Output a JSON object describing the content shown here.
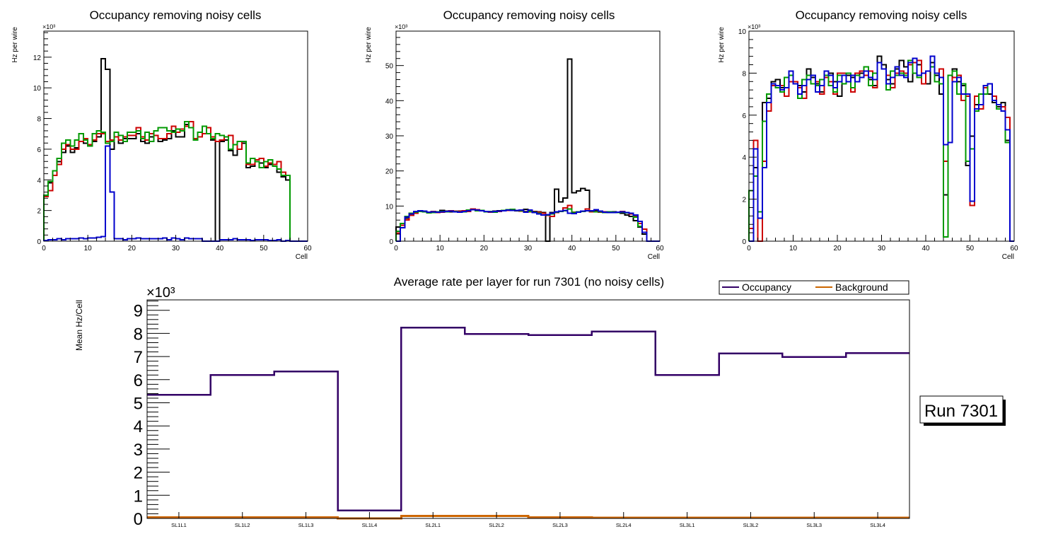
{
  "chart_data": [
    {
      "type": "line",
      "subtype": "step-histogram",
      "title": "Occupancy removing noisy cells",
      "xlabel": "Cell",
      "ylabel": "Hz per wire",
      "y_multiplier_label": "×10³",
      "xlim": [
        0,
        60
      ],
      "ylim": [
        0,
        13.7
      ],
      "y_units": "thousands",
      "x_ticks": [
        0,
        10,
        20,
        30,
        40,
        50,
        60
      ],
      "y_ticks": [
        0,
        2,
        4,
        6,
        8,
        10,
        12
      ],
      "grid": false,
      "series": [
        {
          "name": "black",
          "color": "#000000",
          "values": [
            3.0,
            3.8,
            4.6,
            5.2,
            5.8,
            6.2,
            5.8,
            6.1,
            6.5,
            6.4,
            6.2,
            6.5,
            6.8,
            11.9,
            11.2,
            6.0,
            6.8,
            6.4,
            6.7,
            6.7,
            6.7,
            7.0,
            6.5,
            6.4,
            6.8,
            6.9,
            6.5,
            6.6,
            6.7,
            7.2,
            6.8,
            6.8,
            7.6,
            7.4,
            6.7,
            6.8,
            7.0,
            7.0,
            6.6,
            0.0,
            6.5,
            6.6,
            5.9,
            5.6,
            6.0,
            6.4,
            4.8,
            4.9,
            5.2,
            5.1,
            4.8,
            5.0,
            4.9,
            4.5,
            4.2,
            4.0,
            0,
            0,
            0,
            0
          ]
        },
        {
          "name": "red",
          "color": "#cc0000",
          "values": [
            2.9,
            3.3,
            4.3,
            5.0,
            6.0,
            6.3,
            6.0,
            6.0,
            6.5,
            6.7,
            6.3,
            6.6,
            7.0,
            7.0,
            6.5,
            6.6,
            6.8,
            6.6,
            6.8,
            6.9,
            6.9,
            7.4,
            6.8,
            6.6,
            7.0,
            6.9,
            6.7,
            6.7,
            7.0,
            7.5,
            7.1,
            7.3,
            7.5,
            7.8,
            6.7,
            6.8,
            7.0,
            7.4,
            6.8,
            6.5,
            6.6,
            6.8,
            6.9,
            6.3,
            6.0,
            6.5,
            5.0,
            5.0,
            5.3,
            5.4,
            4.9,
            5.1,
            5.0,
            5.2,
            4.5,
            4.3,
            0,
            0,
            0,
            0
          ]
        },
        {
          "name": "green",
          "color": "#009900",
          "values": [
            3.0,
            3.9,
            4.6,
            5.4,
            6.4,
            6.6,
            6.2,
            6.6,
            7.0,
            6.6,
            6.2,
            7.0,
            7.2,
            7.1,
            6.4,
            6.5,
            7.1,
            6.9,
            6.5,
            7.1,
            7.1,
            7.2,
            6.7,
            7.1,
            6.5,
            7.2,
            7.4,
            7.4,
            7.2,
            7.1,
            7.3,
            7.2,
            7.8,
            7.4,
            6.6,
            7.1,
            7.5,
            7.0,
            6.7,
            7.0,
            6.9,
            6.8,
            6.0,
            6.3,
            6.5,
            6.5,
            5.1,
            5.4,
            5.2,
            4.8,
            5.2,
            5.3,
            4.9,
            4.7,
            4.3,
            4.3,
            0,
            0,
            0,
            0
          ]
        },
        {
          "name": "blue",
          "color": "#0000cc",
          "values": [
            0.05,
            0.1,
            0.1,
            0.15,
            0.1,
            0.15,
            0.15,
            0.15,
            0.2,
            0.15,
            0.2,
            0.2,
            0.25,
            0.3,
            6.2,
            3.2,
            0.15,
            0.15,
            0.1,
            0.15,
            0.15,
            0.2,
            0.15,
            0.15,
            0.15,
            0.15,
            0.15,
            0.2,
            0.1,
            0.2,
            0.15,
            0.1,
            0.2,
            0.15,
            0.15,
            0.15,
            0.0,
            0.0,
            0.0,
            0.0,
            0.1,
            0.1,
            0.1,
            0.15,
            0.1,
            0.1,
            0.1,
            0.05,
            0.1,
            0.1,
            0.1,
            0.05,
            0.05,
            0.1,
            0.0,
            0.05,
            0.0,
            0.0,
            0.0,
            0.0
          ]
        }
      ]
    },
    {
      "type": "line",
      "subtype": "step-histogram",
      "title": "Occupancy removing noisy cells",
      "xlabel": "Cell",
      "ylabel": "Hz per wire",
      "y_multiplier_label": "×10³",
      "xlim": [
        0,
        60
      ],
      "ylim": [
        0,
        59.8
      ],
      "y_units": "thousands",
      "x_ticks": [
        0,
        10,
        20,
        30,
        40,
        50,
        60
      ],
      "y_ticks": [
        0,
        10,
        20,
        30,
        40,
        50
      ],
      "grid": false,
      "series": [
        {
          "name": "black",
          "color": "#000000",
          "values": [
            4.0,
            5.0,
            6.5,
            7.5,
            8.3,
            8.6,
            8.5,
            8.3,
            8.4,
            8.3,
            8.8,
            8.6,
            8.4,
            8.5,
            8.6,
            8.5,
            8.8,
            9.2,
            8.9,
            8.8,
            8.4,
            8.5,
            8.6,
            8.7,
            8.8,
            8.9,
            8.8,
            8.7,
            8.8,
            9.1,
            8.4,
            8.5,
            8.4,
            8.2,
            0.0,
            8.2,
            14.8,
            11.2,
            12.3,
            51.8,
            13.8,
            14.3,
            15.0,
            14.5,
            8.5,
            8.6,
            8.3,
            8.2,
            8.3,
            8.4,
            8.2,
            8.0,
            7.5,
            7.0,
            5.8,
            4.0,
            2.0,
            0.0,
            0.0,
            0.0
          ]
        },
        {
          "name": "red",
          "color": "#cc0000",
          "values": [
            2.3,
            4.5,
            6.0,
            7.3,
            8.0,
            8.5,
            8.4,
            8.3,
            8.5,
            8.2,
            8.3,
            8.5,
            8.7,
            8.6,
            8.5,
            8.7,
            8.5,
            9.2,
            9.0,
            8.8,
            8.5,
            8.3,
            8.4,
            8.5,
            8.7,
            8.8,
            8.9,
            8.8,
            8.6,
            8.5,
            8.4,
            8.4,
            8.3,
            8.0,
            7.3,
            7.0,
            8.2,
            8.6,
            9.5,
            10.2,
            8.3,
            8.4,
            8.6,
            9.2,
            8.4,
            8.5,
            8.3,
            8.4,
            8.2,
            8.3,
            8.3,
            8.5,
            8.2,
            7.8,
            7.0,
            5.0,
            3.4,
            0.0,
            0.0,
            0.0
          ]
        },
        {
          "name": "green",
          "color": "#009900",
          "values": [
            2.8,
            5.0,
            7.0,
            8.0,
            8.3,
            8.5,
            8.4,
            8.1,
            8.2,
            8.4,
            8.5,
            8.4,
            8.6,
            8.5,
            8.3,
            8.4,
            8.9,
            9.0,
            8.7,
            8.8,
            8.4,
            8.5,
            8.3,
            8.6,
            8.8,
            9.0,
            9.1,
            8.8,
            8.7,
            8.4,
            8.5,
            8.3,
            8.0,
            7.5,
            7.4,
            7.8,
            8.3,
            8.5,
            8.7,
            9.2,
            8.2,
            8.4,
            8.5,
            8.7,
            8.6,
            8.4,
            8.4,
            8.2,
            8.4,
            8.3,
            8.2,
            8.3,
            8.1,
            8.0,
            6.8,
            4.2,
            2.5,
            0.0,
            0.0,
            0.0
          ]
        },
        {
          "name": "blue",
          "color": "#0000cc",
          "values": [
            0.0,
            3.8,
            6.8,
            7.8,
            8.5,
            8.7,
            8.6,
            8.3,
            8.4,
            8.3,
            8.4,
            8.5,
            8.6,
            8.4,
            8.3,
            8.5,
            8.7,
            9.0,
            8.9,
            8.7,
            8.5,
            8.4,
            8.5,
            8.6,
            8.7,
            8.9,
            8.8,
            8.8,
            8.9,
            8.3,
            8.9,
            8.2,
            7.8,
            7.5,
            7.6,
            8.0,
            8.4,
            8.6,
            8.8,
            8.0,
            7.9,
            8.3,
            8.6,
            8.7,
            8.7,
            9.0,
            8.6,
            8.3,
            8.2,
            8.2,
            8.3,
            8.4,
            8.2,
            8.0,
            7.5,
            5.6,
            2.5,
            0.0,
            0.0,
            0.0
          ]
        }
      ]
    },
    {
      "type": "line",
      "subtype": "step-histogram",
      "title": "Occupancy removing noisy cells",
      "xlabel": "Cell",
      "ylabel": "Hz per wire",
      "y_multiplier_label": "×10³",
      "xlim": [
        0,
        60
      ],
      "ylim": [
        0,
        10
      ],
      "y_units": "thousands",
      "x_ticks": [
        0,
        10,
        20,
        30,
        40,
        50,
        60
      ],
      "y_ticks": [
        0,
        2,
        4,
        6,
        8,
        10
      ],
      "grid": false,
      "series": [
        {
          "name": "black",
          "color": "#000000",
          "values": [
            0.0,
            3.5,
            1.1,
            6.6,
            6.8,
            7.6,
            7.7,
            7.3,
            7.3,
            7.9,
            7.5,
            7.4,
            7.1,
            8.2,
            7.8,
            7.5,
            7.1,
            8.1,
            8.0,
            7.6,
            6.9,
            7.9,
            7.9,
            7.8,
            7.6,
            8.0,
            8.3,
            7.7,
            7.4,
            8.8,
            8.4,
            7.7,
            7.5,
            8.2,
            8.6,
            8.3,
            7.6,
            8.7,
            8.4,
            8.0,
            7.5,
            8.5,
            7.9,
            7.0,
            2.2,
            4.7,
            8.2,
            7.6,
            7.4,
            3.6,
            5.0,
            6.5,
            6.5,
            7.0,
            7.0,
            6.6,
            6.4,
            6.6,
            4.8,
            0.0
          ]
        },
        {
          "name": "red",
          "color": "#cc0000",
          "values": [
            0.6,
            4.8,
            0.0,
            3.8,
            6.2,
            7.4,
            7.4,
            7.4,
            6.9,
            7.6,
            7.6,
            7.3,
            6.8,
            7.9,
            7.9,
            7.6,
            7.0,
            7.8,
            7.6,
            7.0,
            8.0,
            8.0,
            8.0,
            7.1,
            8.0,
            8.1,
            7.9,
            8.1,
            7.3,
            8.5,
            8.2,
            7.9,
            7.3,
            8.0,
            8.1,
            8.0,
            8.4,
            8.5,
            8.6,
            7.5,
            8.1,
            8.3,
            8.0,
            8.2,
            3.8,
            4.7,
            7.8,
            7.9,
            6.7,
            6.9,
            1.7,
            6.9,
            6.3,
            7.3,
            7.5,
            6.9,
            6.5,
            6.4,
            5.9,
            0.0
          ]
        },
        {
          "name": "green",
          "color": "#009900",
          "values": [
            2.4,
            3.1,
            1.4,
            5.7,
            7.0,
            7.5,
            7.3,
            7.1,
            7.8,
            7.9,
            7.5,
            6.8,
            7.7,
            7.9,
            7.5,
            7.4,
            7.7,
            7.9,
            7.4,
            7.1,
            7.9,
            7.5,
            8.0,
            7.3,
            7.9,
            7.8,
            8.3,
            7.4,
            8.0,
            8.5,
            8.2,
            7.2,
            8.1,
            7.9,
            8.0,
            7.9,
            8.6,
            8.0,
            7.8,
            8.0,
            8.1,
            8.3,
            7.6,
            7.5,
            0.2,
            7.9,
            8.1,
            7.0,
            7.5,
            3.8,
            4.4,
            6.2,
            7.0,
            7.0,
            7.5,
            6.7,
            6.3,
            6.2,
            4.7,
            0.0
          ]
        },
        {
          "name": "blue",
          "color": "#0000cc",
          "values": [
            0.0,
            4.4,
            1.1,
            3.5,
            6.6,
            7.5,
            7.4,
            7.2,
            7.3,
            8.1,
            7.5,
            7.0,
            7.4,
            7.7,
            7.9,
            7.1,
            7.4,
            8.1,
            7.9,
            7.3,
            7.6,
            7.9,
            7.6,
            7.9,
            7.6,
            7.8,
            8.1,
            7.8,
            7.7,
            8.5,
            8.2,
            7.5,
            7.8,
            8.3,
            7.9,
            7.8,
            8.5,
            8.7,
            7.9,
            8.0,
            8.1,
            8.8,
            8.0,
            7.8,
            4.6,
            4.7,
            7.6,
            7.8,
            7.0,
            7.0,
            1.9,
            6.3,
            6.5,
            7.4,
            7.5,
            6.7,
            6.5,
            6.2,
            5.3,
            0.0
          ]
        }
      ]
    },
    {
      "type": "line",
      "subtype": "step-histogram",
      "title": "Average rate per layer for run 7301 (no noisy cells)",
      "xlabel": "",
      "ylabel": "Mean Hz/Cell",
      "y_multiplier_label": "×10³",
      "categories": [
        "SL1L1",
        "SL1L2",
        "SL1L3",
        "SL1L4",
        "SL2L1",
        "SL2L2",
        "SL2L3",
        "SL2L4",
        "SL3L1",
        "SL3L2",
        "SL3L3",
        "SL3L4"
      ],
      "ylim": [
        0,
        9.45
      ],
      "y_units": "thousands",
      "y_ticks": [
        0,
        1,
        2,
        3,
        4,
        5,
        6,
        7,
        8,
        9
      ],
      "grid": false,
      "legend": {
        "position": "top-right",
        "entries": [
          "Occupancy",
          "Background"
        ]
      },
      "series": [
        {
          "name": "Occupancy",
          "color": "#330066",
          "values": [
            5.35,
            6.2,
            6.35,
            0.35,
            8.25,
            7.98,
            7.93,
            8.08,
            6.2,
            7.13,
            6.98,
            7.15
          ]
        },
        {
          "name": "Background",
          "color": "#cc6600",
          "values": [
            0.05,
            0.05,
            0.05,
            0.0,
            0.1,
            0.1,
            0.05,
            0.03,
            0.03,
            0.03,
            0.03,
            0.03
          ]
        }
      ]
    }
  ],
  "annotation": {
    "run_label": "Run 7301"
  }
}
